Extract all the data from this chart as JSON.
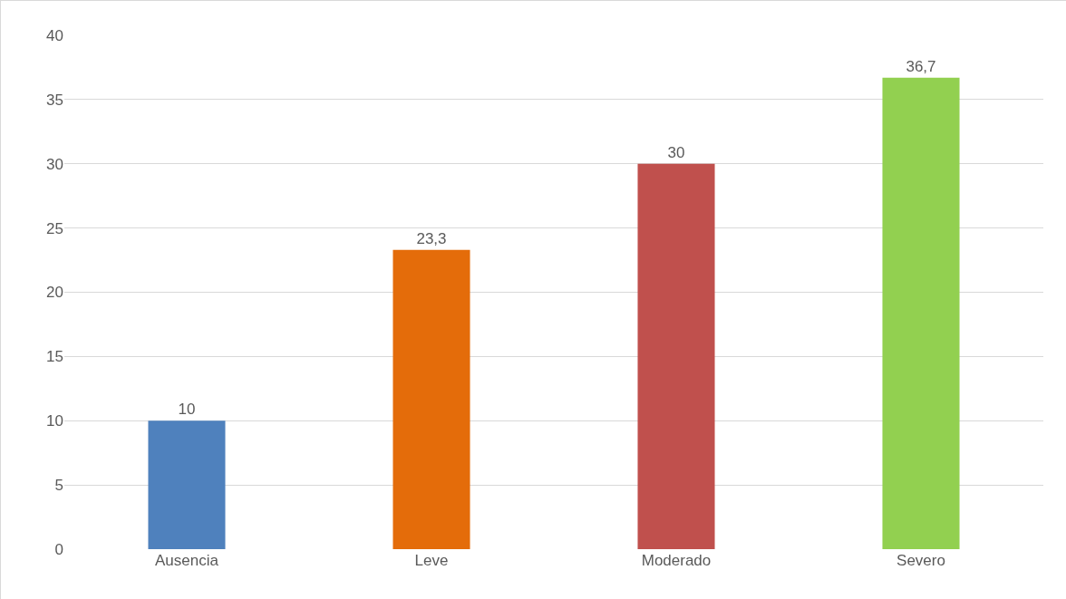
{
  "chart_data": {
    "type": "bar",
    "categories": [
      "Ausencia",
      "Leve",
      "Moderado",
      "Severo"
    ],
    "values": [
      10,
      23.3,
      30,
      36.7
    ],
    "colors": [
      "#4f81bd",
      "#e46c0a",
      "#c0504d",
      "#92d050"
    ],
    "value_labels": [
      "10",
      "23,3",
      "30",
      "36,7"
    ],
    "ylim": [
      0,
      40
    ],
    "yticks": [
      0,
      5,
      10,
      15,
      20,
      25,
      30,
      35,
      40
    ],
    "grid": "y",
    "legend": false
  }
}
